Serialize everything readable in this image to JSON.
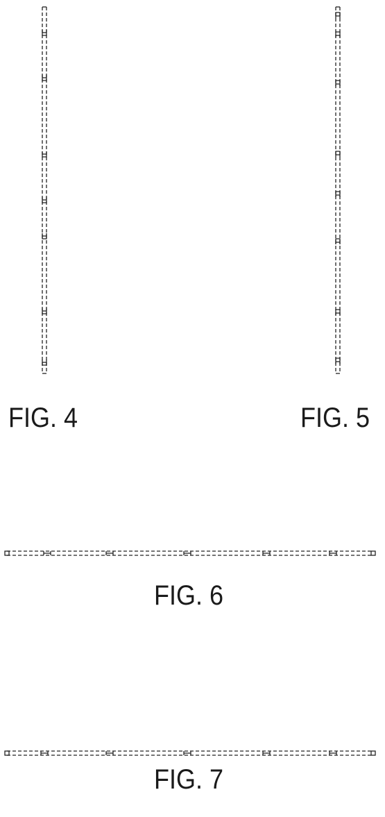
{
  "figures": [
    {
      "id": "fig4",
      "label": "FIG. 4",
      "orientation": "vertical",
      "marker_style": "hooks"
    },
    {
      "id": "fig5",
      "label": "FIG. 5",
      "orientation": "vertical",
      "marker_style": "brackets"
    },
    {
      "id": "fig6",
      "label": "FIG. 6",
      "orientation": "horizontal",
      "marker_style": "crosses"
    },
    {
      "id": "fig7",
      "label": "FIG. 7",
      "orientation": "horizontal",
      "marker_style": "crosses"
    }
  ],
  "colors": {
    "line": "#222222",
    "label": "#1a1a1a",
    "background": "#ffffff"
  }
}
